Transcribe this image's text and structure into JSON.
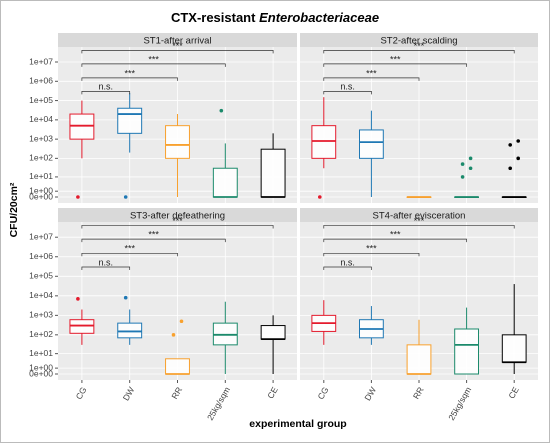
{
  "chart_data": {
    "type": "box",
    "title": "CTX-resistant",
    "title_italic": "Enterobacteriaceae",
    "ylabel": "CFU/20cm²",
    "xlabel": "experimental group",
    "yscale": "pseudo-log",
    "grid": true,
    "ylim": [
      0,
      60000000
    ],
    "yticks": [
      {
        "value": 0,
        "label": "0e+00"
      },
      {
        "value": 1,
        "label": "1e+00"
      },
      {
        "value": 10,
        "label": "1e+01"
      },
      {
        "value": 100,
        "label": "1e+02"
      },
      {
        "value": 1000,
        "label": "1e+03"
      },
      {
        "value": 10000,
        "label": "1e+04"
      },
      {
        "value": 100000,
        "label": "1e+05"
      },
      {
        "value": 1000000,
        "label": "1e+06"
      },
      {
        "value": 10000000,
        "label": "1e+07"
      }
    ],
    "categories": [
      "CG",
      "DW",
      "RR",
      "25kg/sqm",
      "CE"
    ],
    "colors": [
      "#e41a2c",
      "#1f78b4",
      "#f8a12e",
      "#1b8a6b",
      "#000000"
    ],
    "annotations": [
      {
        "from": "CG",
        "to": "DW",
        "label": "n.s.",
        "y": 300000
      },
      {
        "from": "CG",
        "to": "RR",
        "label": "***",
        "y": 1500000
      },
      {
        "from": "CG",
        "to": "25kg/sqm",
        "label": "***",
        "y": 8000000
      },
      {
        "from": "CG",
        "to": "CE",
        "label": "***",
        "y": 40000000
      }
    ],
    "panels": [
      {
        "title": "ST1-after arrival",
        "boxes": [
          {
            "whislo": 100,
            "q1": 1000,
            "median": 5000,
            "q3": 20000,
            "whishi": 100000,
            "outliers": [
              0
            ]
          },
          {
            "whislo": 200,
            "q1": 2000,
            "median": 20000,
            "q3": 40000,
            "whishi": 250000,
            "outliers": [
              0
            ]
          },
          {
            "whislo": 0,
            "q1": 100,
            "median": 500,
            "q3": 5000,
            "whishi": 20000,
            "outliers": []
          },
          {
            "whislo": 0,
            "q1": 0,
            "median": 0,
            "q3": 30,
            "whishi": 600,
            "outliers": [
              30000
            ]
          },
          {
            "whislo": 0,
            "q1": 0,
            "median": 0,
            "q3": 300,
            "whishi": 2000,
            "outliers": []
          }
        ]
      },
      {
        "title": "ST2-after scalding",
        "boxes": [
          {
            "whislo": 30,
            "q1": 100,
            "median": 800,
            "q3": 5000,
            "whishi": 150000,
            "outliers": [
              0
            ]
          },
          {
            "whislo": 0,
            "q1": 100,
            "median": 700,
            "q3": 3000,
            "whishi": 30000,
            "outliers": []
          },
          {
            "whislo": 0,
            "q1": 0,
            "median": 0,
            "q3": 0,
            "whishi": 0,
            "outliers": []
          },
          {
            "whislo": 0,
            "q1": 0,
            "median": 0,
            "q3": 0,
            "whishi": 0,
            "outliers": [
              10,
              30,
              50,
              100
            ]
          },
          {
            "whislo": 0,
            "q1": 0,
            "median": 0,
            "q3": 0,
            "whishi": 0,
            "outliers": [
              30,
              100,
              500,
              800
            ]
          }
        ]
      },
      {
        "title": "ST3-after defeathering",
        "boxes": [
          {
            "whislo": 30,
            "q1": 120,
            "median": 300,
            "q3": 600,
            "whishi": 2000,
            "outliers": [
              7000
            ]
          },
          {
            "whislo": 30,
            "q1": 70,
            "median": 150,
            "q3": 400,
            "whishi": 2000,
            "outliers": [
              8000
            ]
          },
          {
            "whislo": 0,
            "q1": 0,
            "median": 0,
            "q3": 5,
            "whishi": 5,
            "outliers": [
              100,
              500
            ]
          },
          {
            "whislo": 0,
            "q1": 30,
            "median": 100,
            "q3": 400,
            "whishi": 5000,
            "outliers": []
          },
          {
            "whislo": 0,
            "q1": 60,
            "median": 60,
            "q3": 300,
            "whishi": 1000,
            "outliers": []
          }
        ]
      },
      {
        "title": "ST4-after evisceration",
        "boxes": [
          {
            "whislo": 30,
            "q1": 150,
            "median": 400,
            "q3": 1000,
            "whishi": 6000,
            "outliers": []
          },
          {
            "whislo": 30,
            "q1": 70,
            "median": 200,
            "q3": 600,
            "whishi": 3000,
            "outliers": []
          },
          {
            "whislo": 0,
            "q1": 0,
            "median": 0,
            "q3": 30,
            "whishi": 600,
            "outliers": []
          },
          {
            "whislo": 0,
            "q1": 0,
            "median": 30,
            "q3": 200,
            "whishi": 2500,
            "outliers": []
          },
          {
            "whislo": 0,
            "q1": 3,
            "median": 3,
            "q3": 100,
            "whishi": 40000,
            "outliers": []
          }
        ]
      }
    ]
  }
}
